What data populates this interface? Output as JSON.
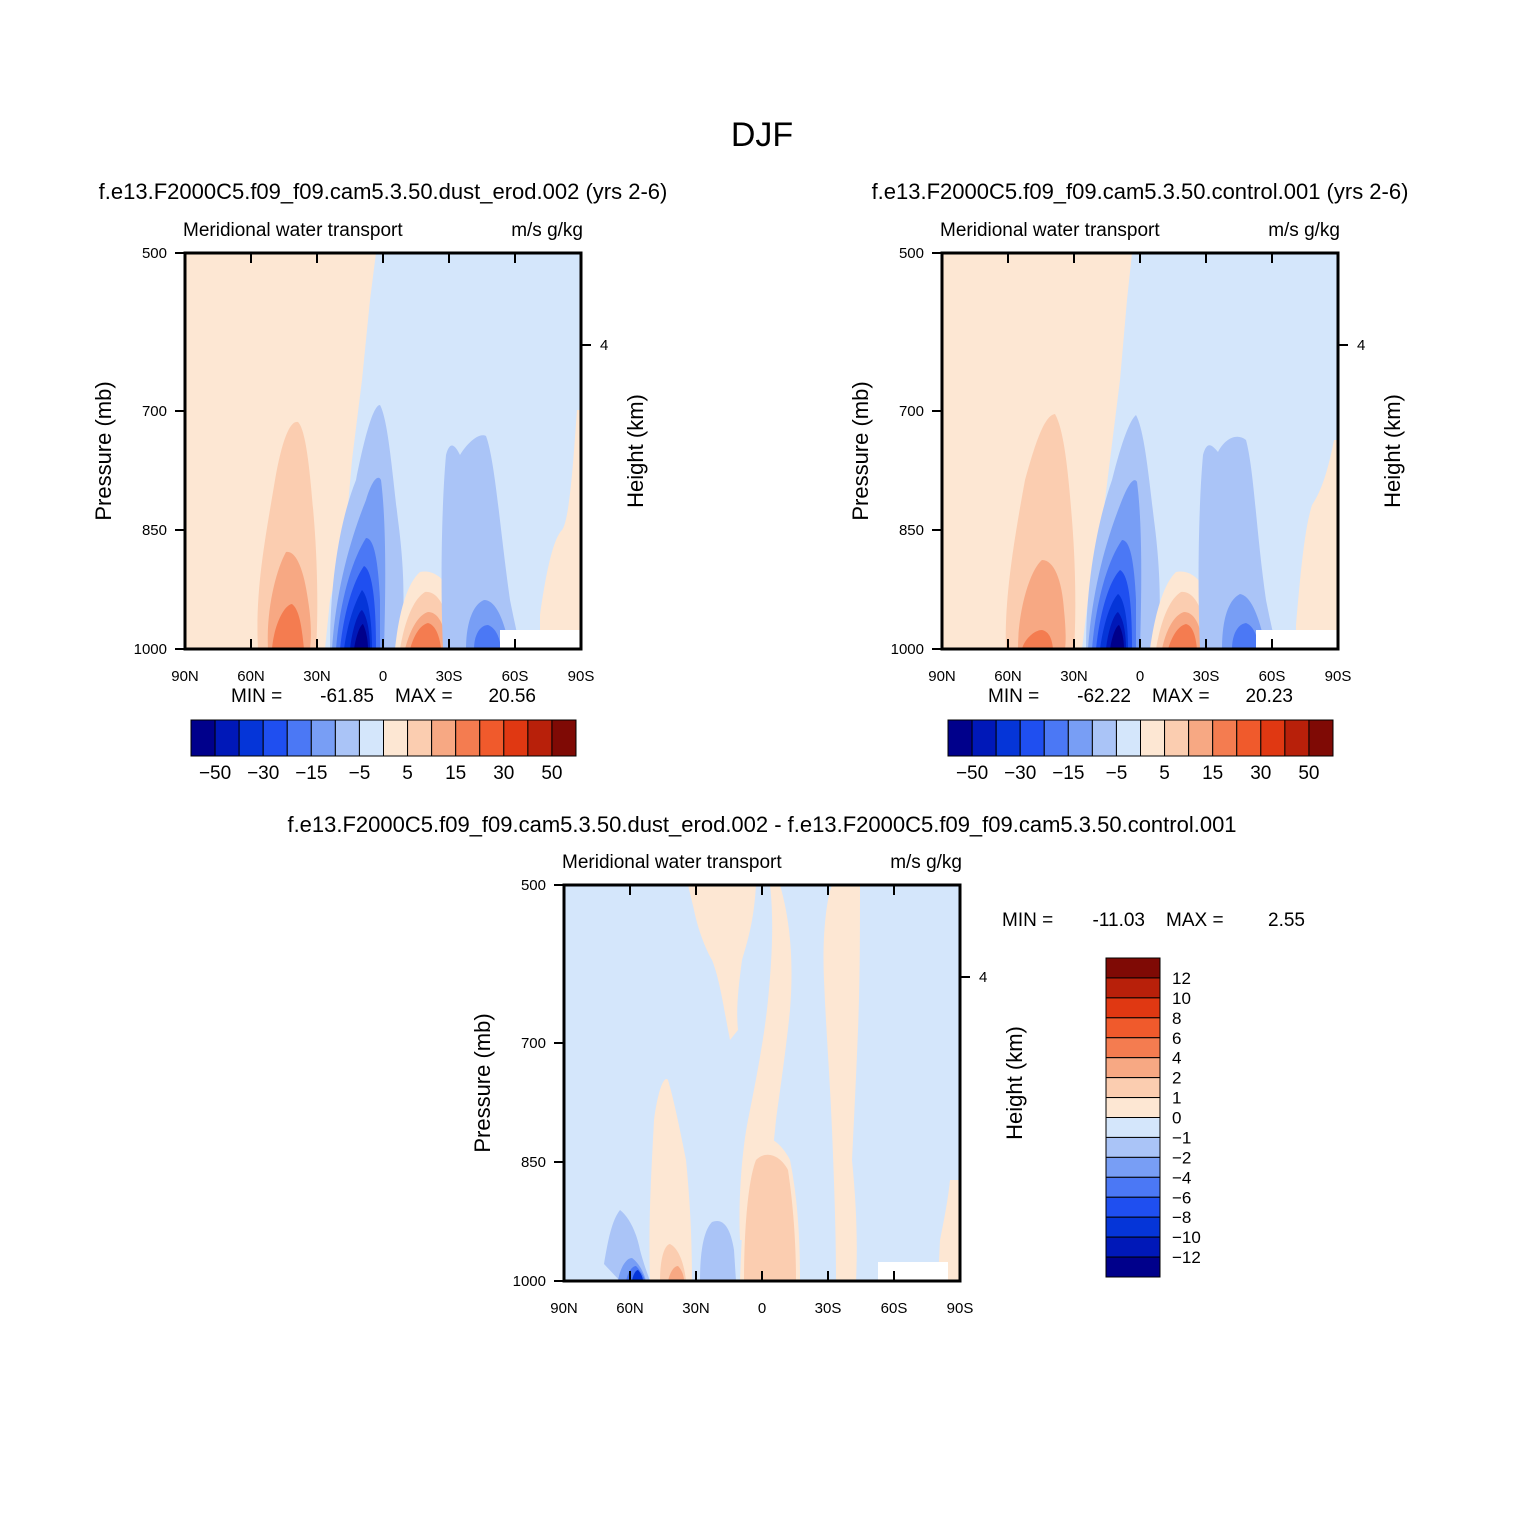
{
  "figure": {
    "title": "DJF"
  },
  "chart_data": [
    {
      "type": "heatmap",
      "title": "f.e13.F2000C5.f09_f09.cam5.3.50.dust_erod.002 (yrs 2-6)",
      "subtitle_left": "Meridional water transport",
      "subtitle_right": "m/s g/kg",
      "ylabel": "Pressure (mb)",
      "ylabel_right": "Height (km)",
      "xlim": [
        90,
        -90
      ],
      "ylim": [
        1000,
        500
      ],
      "y_ticks": [
        "500",
        "700",
        "850",
        "1000"
      ],
      "y_right_ticks": [
        "4"
      ],
      "x_ticks": [
        "90N",
        "60N",
        "30N",
        "0",
        "30S",
        "60S",
        "90S"
      ],
      "min_label": "MIN =",
      "min_value": "-61.85",
      "max_label": "MAX =",
      "max_value": "20.56",
      "colorbar": {
        "orientation": "horizontal",
        "colors": [
          "#00008b",
          "#0018b8",
          "#0535d8",
          "#1f4ff0",
          "#4b78f5",
          "#789ef5",
          "#aac4f7",
          "#d4e6fb",
          "#fde7d3",
          "#fbcdb0",
          "#f7a883",
          "#f47c50",
          "#f05a2c",
          "#e03812",
          "#b8200a",
          "#7f0a05"
        ],
        "labels": [
          "-50",
          "-30",
          "-15",
          "-5",
          "5",
          "15",
          "30",
          "50"
        ]
      },
      "features": [
        {
          "type": "region",
          "sign": "positive",
          "lat_range": [
            90,
            30
          ],
          "p_top": 500,
          "level": 1
        },
        {
          "type": "region",
          "sign": "negative",
          "lat_range": [
            28,
            -90
          ],
          "p_top": 500,
          "level": 1
        },
        {
          "type": "extremum",
          "sign": "negative",
          "lat": 10,
          "p": 990,
          "value": -61.85
        },
        {
          "type": "extremum",
          "sign": "positive",
          "lat": 40,
          "p": 990,
          "value": 20.56
        },
        {
          "type": "extremum",
          "sign": "positive",
          "lat": -25,
          "p": 990,
          "value": 15
        },
        {
          "type": "extremum",
          "sign": "negative",
          "lat": -60,
          "p": 990,
          "value": -10
        }
      ]
    },
    {
      "type": "heatmap",
      "title": "f.e13.F2000C5.f09_f09.cam5.3.50.control.001 (yrs 2-6)",
      "subtitle_left": "Meridional water transport",
      "subtitle_right": "m/s g/kg",
      "ylabel": "Pressure (mb)",
      "ylabel_right": "Height (km)",
      "xlim": [
        90,
        -90
      ],
      "ylim": [
        1000,
        500
      ],
      "y_ticks": [
        "500",
        "700",
        "850",
        "1000"
      ],
      "y_right_ticks": [
        "4"
      ],
      "x_ticks": [
        "90N",
        "60N",
        "30N",
        "0",
        "30S",
        "60S",
        "90S"
      ],
      "min_label": "MIN =",
      "min_value": "-62.22",
      "max_label": "MAX =",
      "max_value": "20.23",
      "colorbar": {
        "orientation": "horizontal",
        "colors": [
          "#00008b",
          "#0018b8",
          "#0535d8",
          "#1f4ff0",
          "#4b78f5",
          "#789ef5",
          "#aac4f7",
          "#d4e6fb",
          "#fde7d3",
          "#fbcdb0",
          "#f7a883",
          "#f47c50",
          "#f05a2c",
          "#e03812",
          "#b8200a",
          "#7f0a05"
        ],
        "labels": [
          "-50",
          "-30",
          "-15",
          "-5",
          "5",
          "15",
          "30",
          "50"
        ]
      },
      "features": [
        {
          "type": "region",
          "sign": "positive",
          "lat_range": [
            90,
            30
          ],
          "p_top": 500,
          "level": 1
        },
        {
          "type": "region",
          "sign": "negative",
          "lat_range": [
            28,
            -90
          ],
          "p_top": 500,
          "level": 1
        },
        {
          "type": "extremum",
          "sign": "negative",
          "lat": 10,
          "p": 990,
          "value": -62.22
        },
        {
          "type": "extremum",
          "sign": "positive",
          "lat": 42,
          "p": 990,
          "value": 20.23
        },
        {
          "type": "extremum",
          "sign": "positive",
          "lat": -20,
          "p": 990,
          "value": 15
        },
        {
          "type": "extremum",
          "sign": "negative",
          "lat": -55,
          "p": 990,
          "value": -10
        }
      ]
    },
    {
      "type": "heatmap",
      "title": "f.e13.F2000C5.f09_f09.cam5.3.50.dust_erod.002 - f.e13.F2000C5.f09_f09.cam5.3.50.control.001",
      "subtitle_left": "Meridional water transport",
      "subtitle_right": "m/s g/kg",
      "ylabel": "Pressure (mb)",
      "ylabel_right": "Height (km)",
      "xlim": [
        90,
        -90
      ],
      "ylim": [
        1000,
        500
      ],
      "y_ticks": [
        "500",
        "700",
        "850",
        "1000"
      ],
      "y_right_ticks": [
        "4"
      ],
      "x_ticks": [
        "90N",
        "60N",
        "30N",
        "0",
        "30S",
        "60S",
        "90S"
      ],
      "min_label": "MIN =",
      "min_value": "-11.03",
      "max_label": "MAX =",
      "max_value": "2.55",
      "colorbar": {
        "orientation": "vertical",
        "colors": [
          "#7f0a05",
          "#b8200a",
          "#e03812",
          "#f05a2c",
          "#f47c50",
          "#f7a883",
          "#fbcdb0",
          "#fde7d3",
          "#d4e6fb",
          "#aac4f7",
          "#789ef5",
          "#4b78f5",
          "#1f4ff0",
          "#0535d8",
          "#0018b8",
          "#00008b"
        ],
        "labels": [
          "12",
          "10",
          "8",
          "6",
          "4",
          "2",
          "1",
          "0",
          "-1",
          "-2",
          "-4",
          "-6",
          "-8",
          "-10",
          "-12"
        ]
      },
      "features": [
        {
          "type": "extremum",
          "sign": "negative",
          "lat": 60,
          "p": 995,
          "value": -11.03
        },
        {
          "type": "extremum",
          "sign": "positive",
          "lat": 38,
          "p": 995,
          "value": 2.55
        },
        {
          "type": "region",
          "sign": "positive",
          "lat_range": [
            -5,
            -20
          ],
          "p_top": 820,
          "level": 2
        }
      ]
    }
  ]
}
